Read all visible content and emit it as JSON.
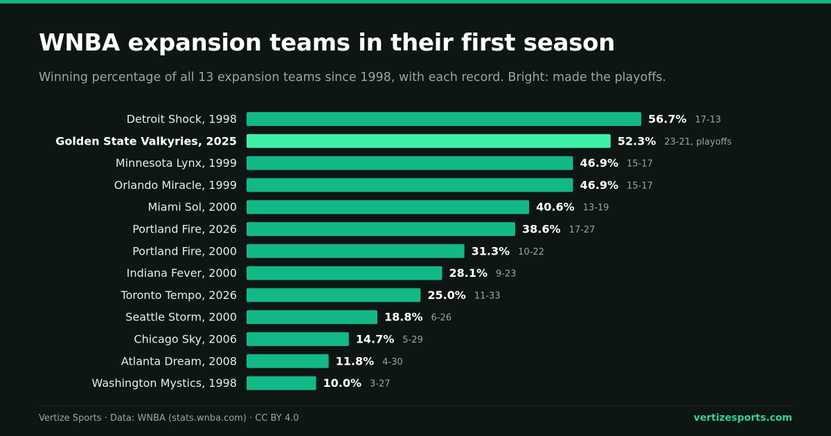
{
  "title": "WNBA expansion teams in their first season",
  "subtitle": "Winning percentage of all 13 expansion teams since 1998, with each record. Bright: made the playoffs.",
  "footer": {
    "source": "Vertize Sports · Data: WNBA (stats.wnba.com) · CC BY 4.0",
    "site": "vertizesports.com"
  },
  "colors": {
    "bar": "#12b886",
    "bar_highlight": "#3ef0a6",
    "accent": "#12b886",
    "background": "#0e1614"
  },
  "chart_data": {
    "type": "bar",
    "orientation": "horizontal",
    "categories": [
      "Detroit Shock, 1998",
      "Golden State Valkyries, 2025",
      "Minnesota Lynx, 1999",
      "Orlando Miracle, 1999",
      "Miami Sol, 2000",
      "Portland Fire, 2026",
      "Portland Fire, 2000",
      "Indiana Fever, 2000",
      "Toronto Tempo, 2026",
      "Seattle Storm, 2000",
      "Chicago Sky, 2006",
      "Atlanta Dream, 2008",
      "Washington Mystics, 1998"
    ],
    "values": [
      56.7,
      52.3,
      46.9,
      46.9,
      40.6,
      38.6,
      31.3,
      28.1,
      25.0,
      18.8,
      14.7,
      11.8,
      10.0
    ],
    "value_labels": [
      "56.7%",
      "52.3%",
      "46.9%",
      "46.9%",
      "40.6%",
      "38.6%",
      "31.3%",
      "28.1%",
      "25.0%",
      "18.8%",
      "14.7%",
      "11.8%",
      "10.0%"
    ],
    "records": [
      "17-13",
      "23-21, playoffs",
      "15-17",
      "15-17",
      "13-19",
      "17-27",
      "10-22",
      "9-23",
      "11-33",
      "6-26",
      "5-29",
      "4-30",
      "3-27"
    ],
    "highlight": [
      "Golden State Valkyries, 2025"
    ],
    "grid": false,
    "legend": "none"
  }
}
